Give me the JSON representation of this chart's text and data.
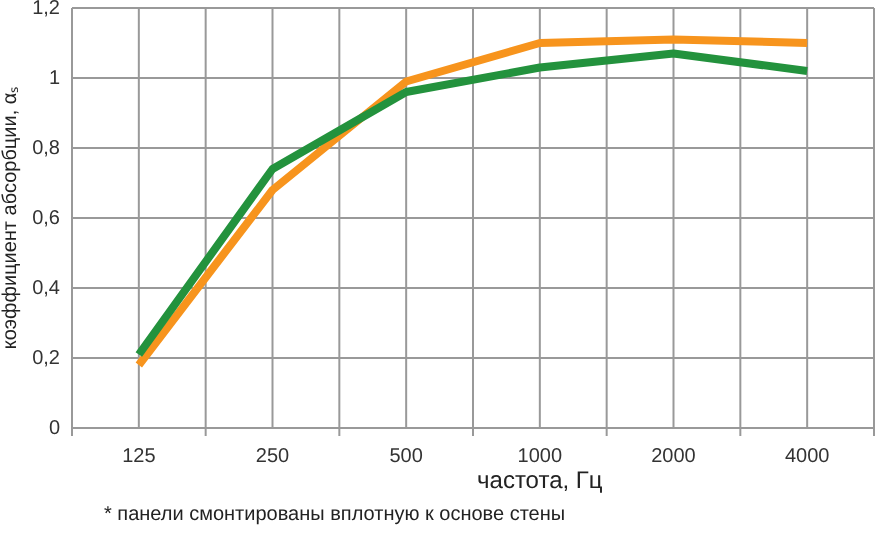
{
  "chart_data": {
    "type": "line",
    "xlabel": "частота, Гц",
    "ylabel": "коэффициент абсорбции, αₛ",
    "categories": [
      "125",
      "250",
      "500",
      "1000",
      "2000",
      "4000"
    ],
    "series": [
      {
        "color": "#f7941d",
        "values": [
          0.18,
          0.68,
          0.99,
          1.1,
          1.11,
          1.1
        ]
      },
      {
        "color": "#23923d",
        "values": [
          0.21,
          0.74,
          0.96,
          1.03,
          1.07,
          1.02
        ]
      }
    ],
    "ylim": [
      0,
      1.2
    ],
    "yticks": [
      0,
      {
        "value": 0.2,
        "label": "0,2"
      },
      {
        "value": 0.4,
        "label": "0,4"
      },
      {
        "value": 0.6,
        "label": "0,6"
      },
      {
        "value": 0.8,
        "label": "0,8"
      },
      1,
      {
        "value": 1.2,
        "label": "1,2"
      }
    ],
    "grid": true,
    "marker": "none",
    "line_style": "solid",
    "annotations": [
      "* панели смонтированы вплотную к основе стены"
    ]
  }
}
